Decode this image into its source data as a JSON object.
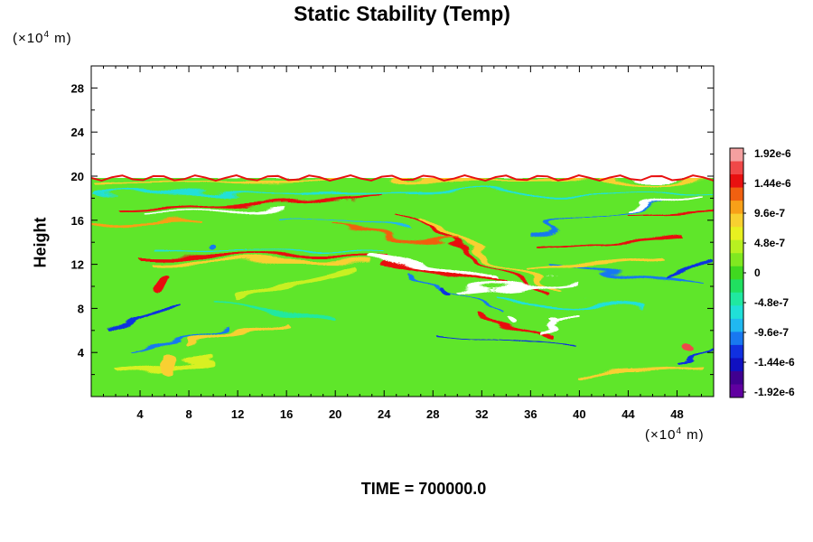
{
  "chart_data": {
    "type": "heatmap",
    "title": "Static Stability (Temp)",
    "xlabel": "",
    "ylabel": "Height",
    "x_unit": "(×10⁴ m)",
    "y_unit": "(×10⁴ m)",
    "xlim": [
      0,
      51
    ],
    "ylim": [
      0,
      30
    ],
    "data_top": 20,
    "x_ticks": [
      4,
      8,
      12,
      16,
      20,
      24,
      28,
      32,
      36,
      40,
      44,
      48
    ],
    "x_tick_labels": [
      "4",
      "8",
      "12",
      "16",
      "20",
      "24",
      "28",
      "32",
      "36",
      "40",
      "44",
      "48"
    ],
    "y_ticks": [
      4,
      8,
      12,
      16,
      20,
      24,
      28
    ],
    "y_tick_labels": [
      "4",
      "8",
      "12",
      "16",
      "20",
      "24",
      "28"
    ],
    "colorbar": {
      "labels": [
        "1.92e-6",
        "1.44e-6",
        "9.6e-7",
        "4.8e-7",
        "0",
        "-4.8e-7",
        "-9.6e-7",
        "-1.44e-6",
        "-1.92e-6"
      ],
      "colors": [
        "#f4a0a0",
        "#f04848",
        "#e81010",
        "#f06010",
        "#f8a018",
        "#f8d030",
        "#e8f020",
        "#b8f020",
        "#80e820",
        "#40d820",
        "#20e060",
        "#20e8a0",
        "#20e0d8",
        "#20b8f0",
        "#1878f0",
        "#1030e0",
        "#1010c0",
        "#400090",
        "#6000a0"
      ]
    },
    "footer": "TIME = 700000.0"
  }
}
